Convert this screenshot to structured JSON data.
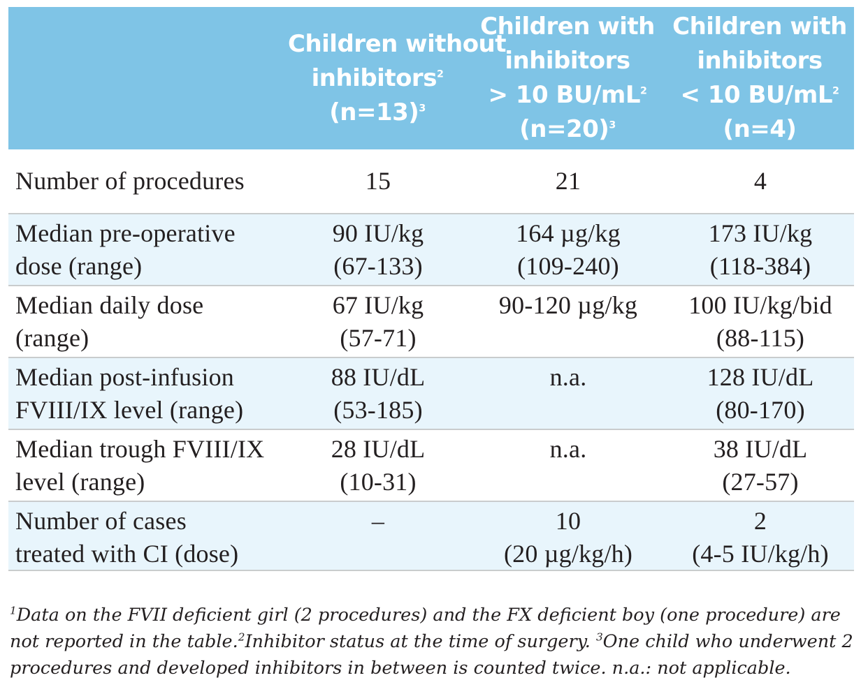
{
  "columns": [
    {
      "lines": [
        "",
        "",
        "",
        ""
      ]
    },
    {
      "lines": [
        "Children without",
        "inhibitors",
        "(n=13)"
      ],
      "sups": [
        "",
        "2",
        "3"
      ]
    },
    {
      "lines": [
        "Children with",
        "inhibitors",
        "> 10 BU/mL",
        "(n=20)"
      ],
      "sups": [
        "",
        "",
        "2",
        "3"
      ]
    },
    {
      "lines": [
        "Children with",
        "inhibitors",
        "< 10 BU/mL",
        "(n=4)"
      ],
      "sups": [
        "",
        "",
        "2",
        ""
      ]
    }
  ],
  "rows": [
    {
      "label": [
        "Number of procedures"
      ],
      "values": [
        [
          "15"
        ],
        [
          "21"
        ],
        [
          "4"
        ]
      ]
    },
    {
      "label": [
        "Median pre-operative",
        "dose (range)"
      ],
      "values": [
        [
          "90 IU/kg",
          "(67-133)"
        ],
        [
          "164 µg/kg",
          "(109-240)"
        ],
        [
          "173 IU/kg",
          "(118-384)"
        ]
      ]
    },
    {
      "label": [
        "Median daily dose",
        "(range)"
      ],
      "values": [
        [
          "67 IU/kg",
          "(57-71)"
        ],
        [
          "90-120 µg/kg"
        ],
        [
          "100 IU/kg/bid",
          "(88-115)"
        ]
      ]
    },
    {
      "label": [
        "Median post-infusion",
        "FVIII/IX level (range)"
      ],
      "values": [
        [
          "88 IU/dL",
          "(53-185)"
        ],
        [
          "n.a."
        ],
        [
          "128 IU/dL",
          "(80-170)"
        ]
      ]
    },
    {
      "label": [
        "Median trough FVIII/IX",
        "level (range)"
      ],
      "values": [
        [
          "28 IU/dL",
          "(10-31)"
        ],
        [
          "n.a."
        ],
        [
          "38 IU/dL",
          "(27-57)"
        ]
      ]
    },
    {
      "label": [
        "Number of cases",
        "treated with CI (dose)"
      ],
      "values": [
        [
          "–"
        ],
        [
          "10",
          "(20 µg/kg/h)"
        ],
        [
          "2",
          "(4-5 IU/kg/h)"
        ]
      ]
    }
  ],
  "footnote": {
    "line1_sup": "1",
    "line1": "Data on the FVII deficient girl (2 procedures) and the FX deficient boy (one procedure) are",
    "line2_a": "not reported in the table.",
    "line2_sup_a": "2",
    "line2_b": "Inhibitor status at the time of surgery.",
    "line2_sup_b": "3",
    "line2_c": "One child who underwent 2",
    "line3": "procedures and developed inhibitors in between is counted twice. n.a.: not applicable."
  }
}
